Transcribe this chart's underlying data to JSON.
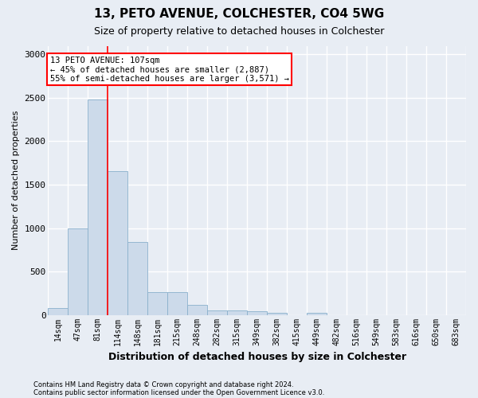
{
  "title1": "13, PETO AVENUE, COLCHESTER, CO4 5WG",
  "title2": "Size of property relative to detached houses in Colchester",
  "xlabel": "Distribution of detached houses by size in Colchester",
  "ylabel": "Number of detached properties",
  "footnote1": "Contains HM Land Registry data © Crown copyright and database right 2024.",
  "footnote2": "Contains public sector information licensed under the Open Government Licence v3.0.",
  "bar_labels": [
    "14sqm",
    "47sqm",
    "81sqm",
    "114sqm",
    "148sqm",
    "181sqm",
    "215sqm",
    "248sqm",
    "282sqm",
    "315sqm",
    "349sqm",
    "382sqm",
    "415sqm",
    "449sqm",
    "482sqm",
    "516sqm",
    "549sqm",
    "583sqm",
    "616sqm",
    "650sqm",
    "683sqm"
  ],
  "bar_values": [
    75,
    1000,
    2480,
    1660,
    840,
    260,
    260,
    120,
    55,
    50,
    40,
    25,
    0,
    25,
    0,
    0,
    0,
    0,
    0,
    0,
    0
  ],
  "bar_color": "#ccdaea",
  "bar_edgecolor": "#8ab0cc",
  "annotation_text": "13 PETO AVENUE: 107sqm\n← 45% of detached houses are smaller (2,887)\n55% of semi-detached houses are larger (3,571) →",
  "annotation_box_color": "white",
  "annotation_box_edge": "red",
  "vline_color": "red",
  "vline_x": 2.5,
  "ylim": [
    0,
    3100
  ],
  "yticks": [
    0,
    500,
    1000,
    1500,
    2000,
    2500,
    3000
  ],
  "background_color": "#e8edf4",
  "grid_color": "white",
  "title1_fontsize": 11,
  "title2_fontsize": 9,
  "ylabel_fontsize": 8,
  "xlabel_fontsize": 9,
  "tick_fontsize": 7,
  "footnote_fontsize": 6
}
